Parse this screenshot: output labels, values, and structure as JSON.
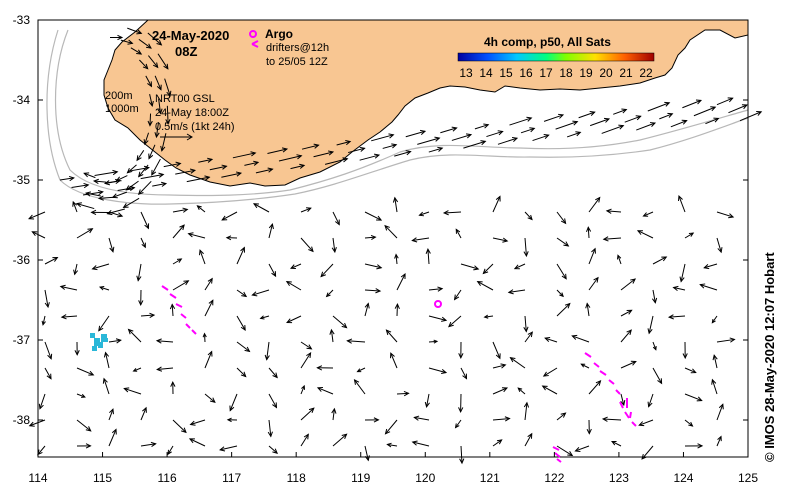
{
  "map": {
    "date": "24-May-2020",
    "time": "08Z",
    "legend": {
      "argo_label": "Argo",
      "drifters_line1": "drifters@12h",
      "drifters_line2": "to 25/05 12Z"
    },
    "model_info": {
      "isobath1": "200m",
      "isobath2": "1000m",
      "product": "NRT00 GSL",
      "product_time": "24-May 18:00Z",
      "scale": "0.5m/s (1kt 24h)"
    },
    "colorbar": {
      "title": "4h comp, p50, All Sats",
      "ticks": [
        "13",
        "14",
        "15",
        "16",
        "17",
        "18",
        "19",
        "20",
        "21",
        "22"
      ]
    },
    "credit": "© IMOS 28-May-2020 12:07 Hobart",
    "colors": {
      "land": "#f8c692",
      "argo": "#ff00ff",
      "drifter": "#ff00ff",
      "sst_patch": "#2ab7d8"
    },
    "x_axis": {
      "ticks": [
        "114",
        "115",
        "116",
        "117",
        "118",
        "119",
        "120",
        "121",
        "122",
        "123",
        "124",
        "125"
      ]
    },
    "y_axis": {
      "ticks": [
        "-33",
        "-34",
        "-35",
        "-36",
        "-37",
        "-38"
      ]
    }
  }
}
